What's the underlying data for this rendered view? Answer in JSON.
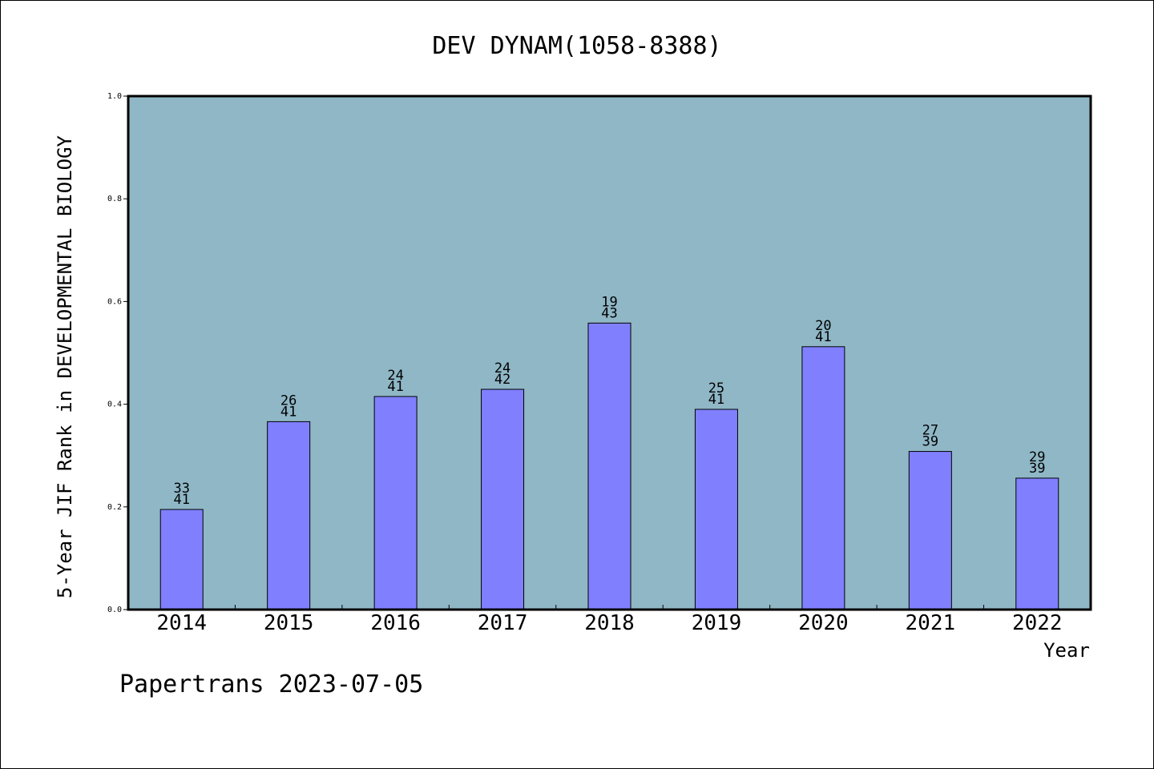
{
  "chart_data": {
    "type": "bar",
    "title": "DEV DYNAM(1058-8388)",
    "xlabel": "Year",
    "ylabel": "5-Year JIF Rank in DEVELOPMENTAL BIOLOGY",
    "categories": [
      "2014",
      "2015",
      "2016",
      "2017",
      "2018",
      "2019",
      "2020",
      "2021",
      "2022"
    ],
    "values": [
      0.195,
      0.366,
      0.415,
      0.429,
      0.558,
      0.39,
      0.512,
      0.308,
      0.256
    ],
    "rank_labels": [
      [
        "33",
        "41"
      ],
      [
        "26",
        "41"
      ],
      [
        "24",
        "41"
      ],
      [
        "24",
        "42"
      ],
      [
        "19",
        "43"
      ],
      [
        "25",
        "41"
      ],
      [
        "20",
        "41"
      ],
      [
        "27",
        "39"
      ],
      [
        "29",
        "39"
      ]
    ],
    "ylim": [
      0,
      1.0
    ],
    "yticks": [
      "0.0",
      "0.2",
      "0.4",
      "0.6",
      "0.8",
      "1.0"
    ],
    "grid": false,
    "colors": {
      "plot_bg": "#8fb7c6",
      "bar": "#8080ff",
      "bar_edge": "#000000"
    }
  },
  "footer": "Papertrans 2023-07-05"
}
